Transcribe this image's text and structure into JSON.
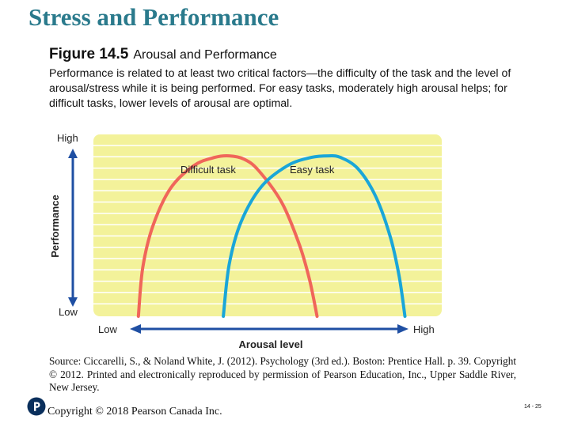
{
  "slide": {
    "title": "Stress and Performance",
    "slide_number": "14 - 25",
    "copyright": "Copyright © 2018 Pearson Canada Inc."
  },
  "figure": {
    "number": "Figure 14.5",
    "caption": "Arousal and Performance",
    "description": "Performance is related to at least two critical factors—the difficulty of the task and the level of arousal/stress while it is being performed. For easy tasks, moderately high arousal helps; for difficult tasks, lower levels of arousal are optimal.",
    "source": "Source: Ciccarelli, S., & Noland White, J. (2012). Psychology (3rd ed.). Boston: Prentice Hall. p. 39. Copyright © 2012. Printed and electronically reproduced by permission of Pearson Education, Inc., Upper Saddle River, New Jersey."
  },
  "logo": {
    "icon": "pearson-logo-icon",
    "color": "#0a2f5c"
  },
  "colors": {
    "title": "#2a7a8c",
    "plot_background": "#f3f29a",
    "gridline": "#ffffff",
    "axis_arrow": "#1f4fa3",
    "difficult_task": "#f0665a",
    "easy_task": "#1aa6d8"
  },
  "chart_data": {
    "type": "line",
    "xlabel": "Arousal level",
    "ylabel": "Performance",
    "x_ticks": [
      "Low",
      "High"
    ],
    "y_ticks": [
      "Low",
      "High"
    ],
    "xlim": [
      0,
      10
    ],
    "ylim": [
      0,
      10
    ],
    "grid": "horizontal",
    "series": [
      {
        "name": "Difficult task",
        "color": "#f0665a",
        "x": [
          0.4,
          0.55,
          0.9,
          1.5,
          2.3,
          3.0,
          3.5,
          4.0,
          4.5,
          5.3,
          5.9,
          6.25,
          6.5
        ],
        "y": [
          0,
          3.0,
          5.6,
          7.9,
          9.3,
          9.8,
          9.9,
          9.7,
          9.0,
          7.0,
          4.4,
          2.2,
          0
        ]
      },
      {
        "name": "Easy task",
        "color": "#1aa6d8",
        "x": [
          3.3,
          3.5,
          3.9,
          4.6,
          5.5,
          6.3,
          6.9,
          7.3,
          7.9,
          8.5,
          9.0,
          9.3,
          9.5
        ],
        "y": [
          0,
          3.2,
          5.8,
          8.0,
          9.3,
          9.8,
          9.9,
          9.8,
          9.1,
          7.4,
          4.9,
          2.5,
          0
        ]
      }
    ]
  }
}
